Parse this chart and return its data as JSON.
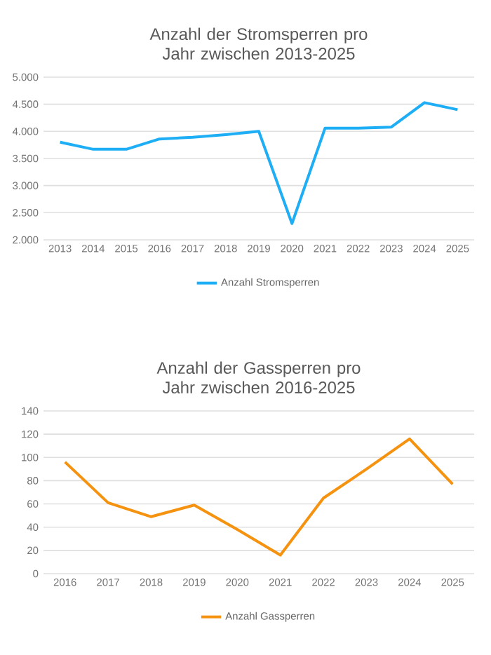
{
  "chart_data": [
    {
      "type": "line",
      "title": "Anzahl der Stromsperren pro Jahr zwischen 2013-2025",
      "categories": [
        "2013",
        "2014",
        "2015",
        "2016",
        "2017",
        "2018",
        "2019",
        "2020",
        "2021",
        "2022",
        "2023",
        "2024",
        "2025"
      ],
      "series": [
        {
          "name": "Anzahl Stromsperren",
          "color": "#1eaef5",
          "values": [
            3800,
            3670,
            3670,
            3860,
            3890,
            3940,
            4000,
            2300,
            4060,
            4060,
            4080,
            4530,
            4400
          ]
        }
      ],
      "ylim": [
        2000,
        5000
      ],
      "yticks": [
        {
          "value": 2000,
          "label": "2.000"
        },
        {
          "value": 2500,
          "label": "2.500"
        },
        {
          "value": 3000,
          "label": "3.000"
        },
        {
          "value": 3500,
          "label": "3.500"
        },
        {
          "value": 4000,
          "label": "4.000"
        },
        {
          "value": 4500,
          "label": "4.500"
        },
        {
          "value": 5000,
          "label": "5.000"
        }
      ],
      "grid": "y",
      "legend": "bottom"
    },
    {
      "type": "line",
      "title": "Anzahl der Gassperren pro Jahr zwischen 2016-2025",
      "categories": [
        "2016",
        "2017",
        "2018",
        "2019",
        "2020",
        "2021",
        "2022",
        "2023",
        "2024",
        "2025"
      ],
      "series": [
        {
          "name": "Anzahl Gassperren",
          "color": "#f5920f",
          "values": [
            96,
            61,
            49,
            59,
            38,
            16,
            65,
            90,
            116,
            77
          ]
        }
      ],
      "ylim": [
        0,
        140
      ],
      "yticks": [
        0,
        20,
        40,
        60,
        80,
        100,
        120,
        140
      ],
      "grid": "y",
      "legend": "bottom"
    }
  ]
}
